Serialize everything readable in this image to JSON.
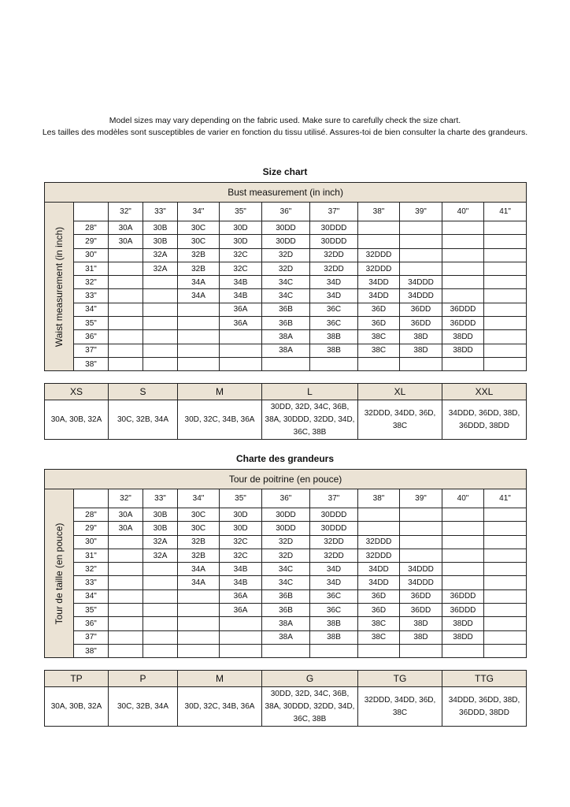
{
  "intro": {
    "line1": "Model sizes may vary depending on the fabric used. Make sure to carefully check the size chart.",
    "line2": "Les tailles des modèles sont susceptibles de varier en fonction du tissu utilisé. Assures-toi de bien consulter la charte des grandeurs."
  },
  "charts": [
    {
      "title": "Size chart",
      "caption": "Bust measurement (in inch)",
      "row_label": "Waist measurement (in inch)",
      "columns": [
        "32\"",
        "33\"",
        "34\"",
        "35\"",
        "36\"",
        "37\"",
        "38\"",
        "39\"",
        "40\"",
        "41\""
      ],
      "rows": [
        {
          "label": "28\"",
          "cells": [
            "30A",
            "30B",
            "30C",
            "30D",
            "30DD",
            "30DDD",
            "",
            "",
            "",
            ""
          ]
        },
        {
          "label": "29\"",
          "cells": [
            "30A",
            "30B",
            "30C",
            "30D",
            "30DD",
            "30DDD",
            "",
            "",
            "",
            ""
          ]
        },
        {
          "label": "30\"",
          "cells": [
            "",
            "32A",
            "32B",
            "32C",
            "32D",
            "32DD",
            "32DDD",
            "",
            "",
            ""
          ]
        },
        {
          "label": "31\"",
          "cells": [
            "",
            "32A",
            "32B",
            "32C",
            "32D",
            "32DD",
            "32DDD",
            "",
            "",
            ""
          ]
        },
        {
          "label": "32\"",
          "cells": [
            "",
            "",
            "34A",
            "34B",
            "34C",
            "34D",
            "34DD",
            "34DDD",
            "",
            ""
          ]
        },
        {
          "label": "33\"",
          "cells": [
            "",
            "",
            "34A",
            "34B",
            "34C",
            "34D",
            "34DD",
            "34DDD",
            "",
            ""
          ]
        },
        {
          "label": "34\"",
          "cells": [
            "",
            "",
            "",
            "36A",
            "36B",
            "36C",
            "36D",
            "36DD",
            "36DDD",
            ""
          ]
        },
        {
          "label": "35\"",
          "cells": [
            "",
            "",
            "",
            "36A",
            "36B",
            "36C",
            "36D",
            "36DD",
            "36DDD",
            ""
          ]
        },
        {
          "label": "36\"",
          "cells": [
            "",
            "",
            "",
            "",
            "38A",
            "38B",
            "38C",
            "38D",
            "38DD",
            ""
          ]
        },
        {
          "label": "37\"",
          "cells": [
            "",
            "",
            "",
            "",
            "38A",
            "38B",
            "38C",
            "38D",
            "38DD",
            ""
          ]
        },
        {
          "label": "38\"",
          "cells": [
            "",
            "",
            "",
            "",
            "",
            "",
            "",
            "",
            "",
            ""
          ]
        }
      ],
      "sizes": [
        {
          "name": "XS",
          "fits": "30A, 30B, 32A"
        },
        {
          "name": "S",
          "fits": "30C, 32B, 34A"
        },
        {
          "name": "M",
          "fits": "30D, 32C, 34B, 36A"
        },
        {
          "name": "L",
          "fits": "30DD, 32D, 34C, 36B, 38A, 30DDD, 32DD, 34D, 36C, 38B"
        },
        {
          "name": "XL",
          "fits": "32DDD, 34DD, 36D, 38C"
        },
        {
          "name": "XXL",
          "fits": "34DDD, 36DD, 38D, 36DDD, 38DD"
        }
      ]
    },
    {
      "title": "Charte des grandeurs",
      "caption": "Tour de poitrine (en pouce)",
      "row_label": "Tour de taille (en pouce)",
      "columns": [
        "32\"",
        "33\"",
        "34\"",
        "35\"",
        "36\"",
        "37\"",
        "38\"",
        "39\"",
        "40\"",
        "41\""
      ],
      "rows": [
        {
          "label": "28\"",
          "cells": [
            "30A",
            "30B",
            "30C",
            "30D",
            "30DD",
            "30DDD",
            "",
            "",
            "",
            ""
          ]
        },
        {
          "label": "29\"",
          "cells": [
            "30A",
            "30B",
            "30C",
            "30D",
            "30DD",
            "30DDD",
            "",
            "",
            "",
            ""
          ]
        },
        {
          "label": "30\"",
          "cells": [
            "",
            "32A",
            "32B",
            "32C",
            "32D",
            "32DD",
            "32DDD",
            "",
            "",
            ""
          ]
        },
        {
          "label": "31\"",
          "cells": [
            "",
            "32A",
            "32B",
            "32C",
            "32D",
            "32DD",
            "32DDD",
            "",
            "",
            ""
          ]
        },
        {
          "label": "32\"",
          "cells": [
            "",
            "",
            "34A",
            "34B",
            "34C",
            "34D",
            "34DD",
            "34DDD",
            "",
            ""
          ]
        },
        {
          "label": "33\"",
          "cells": [
            "",
            "",
            "34A",
            "34B",
            "34C",
            "34D",
            "34DD",
            "34DDD",
            "",
            ""
          ]
        },
        {
          "label": "34\"",
          "cells": [
            "",
            "",
            "",
            "36A",
            "36B",
            "36C",
            "36D",
            "36DD",
            "36DDD",
            ""
          ]
        },
        {
          "label": "35\"",
          "cells": [
            "",
            "",
            "",
            "36A",
            "36B",
            "36C",
            "36D",
            "36DD",
            "36DDD",
            ""
          ]
        },
        {
          "label": "36\"",
          "cells": [
            "",
            "",
            "",
            "",
            "38A",
            "38B",
            "38C",
            "38D",
            "38DD",
            ""
          ]
        },
        {
          "label": "37\"",
          "cells": [
            "",
            "",
            "",
            "",
            "38A",
            "38B",
            "38C",
            "38D",
            "38DD",
            ""
          ]
        },
        {
          "label": "38\"",
          "cells": [
            "",
            "",
            "",
            "",
            "",
            "",
            "",
            "",
            "",
            ""
          ]
        }
      ],
      "sizes": [
        {
          "name": "TP",
          "fits": "30A, 30B, 32A"
        },
        {
          "name": "P",
          "fits": "30C, 32B, 34A"
        },
        {
          "name": "M",
          "fits": "30D, 32C, 34B, 36A"
        },
        {
          "name": "G",
          "fits": "30DD, 32D, 34C, 36B, 38A, 30DDD, 32DD, 34D, 36C, 38B"
        },
        {
          "name": "TG",
          "fits": "32DDD, 34DD, 36D, 38C"
        },
        {
          "name": "TTG",
          "fits": "34DDD, 36DD, 38D, 36DDD, 38DD"
        }
      ]
    }
  ],
  "colors": {
    "header_bg": "#ebe3d5",
    "border": "#222222"
  }
}
